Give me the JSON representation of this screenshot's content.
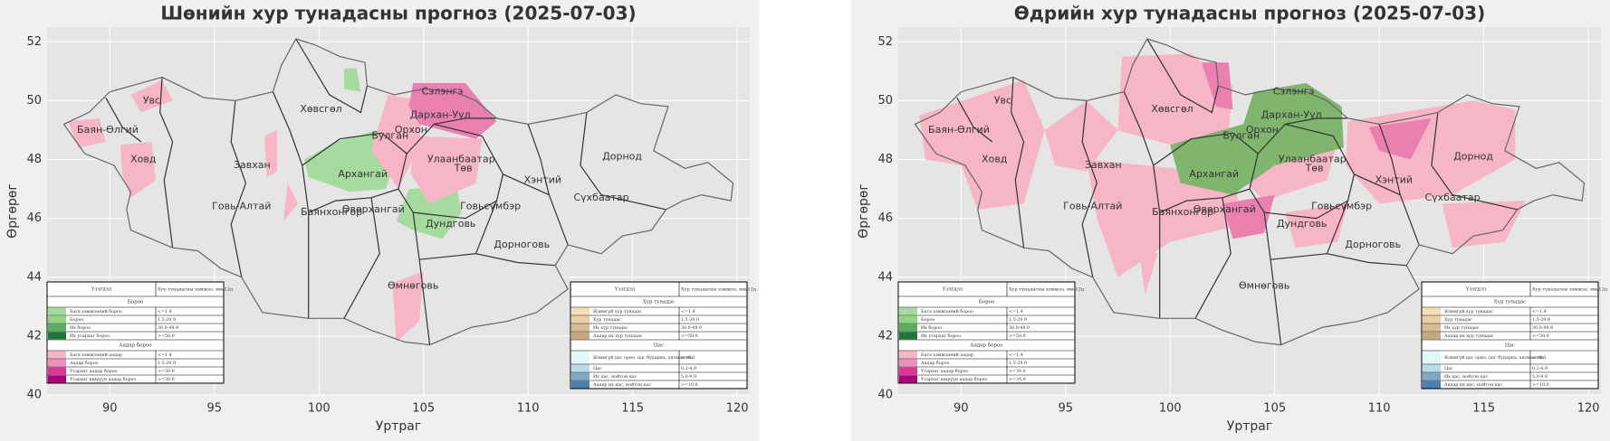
{
  "panels": [
    {
      "title": "Шөнийн хур тунадасны прогноз (2025-07-03)",
      "xlabel": "Уртраг",
      "ylabel": "Өргөрөг",
      "xlim": [
        87,
        120.6
      ],
      "ylim": [
        40,
        52.5
      ],
      "xticks": [
        90,
        95,
        100,
        105,
        110,
        115,
        120
      ],
      "yticks": [
        40,
        42,
        44,
        46,
        48,
        50,
        52
      ]
    },
    {
      "title": "Өдрийн хур тунадасны прогноз (2025-07-03)",
      "xlabel": "Уртраг",
      "ylabel": "Өргөрөг",
      "xlim": [
        87,
        120.6
      ],
      "ylim": [
        40,
        52.5
      ],
      "xticks": [
        90,
        95,
        100,
        105,
        110,
        115,
        120
      ],
      "yticks": [
        40,
        42,
        44,
        46,
        48,
        50,
        52
      ]
    }
  ],
  "places": [
    "Увс",
    "Баян-Өлгий",
    "Ховд",
    "Завхан",
    "Говь-Алтай",
    "Хөвсгөл",
    "Архангай",
    "Баянхонгор",
    "Өвөрхангай",
    "Булган",
    "Орхон",
    "Сэлэнгэ",
    "Дархан-Уул",
    "Улаанбаатар",
    "Төв",
    "Хэнтий",
    "Дорнод",
    "Сүхбаатар",
    "Говьсүмбэр",
    "Дундговь",
    "Дорноговь",
    "Өмнөговь"
  ],
  "legends": [
    {
      "header": [
        "Үзэгдэл",
        "Хур тунадасны хэмжээ, мм/12ц"
      ],
      "sections": [
        {
          "name": "Бороо",
          "items": [
            {
              "label": "Бага хэмжээний бороо",
              "range": "<=1.4",
              "color": "#a6dba0"
            },
            {
              "label": "Бороо",
              "range": "1.5-29.9",
              "color": "#8fd67f"
            },
            {
              "label": "Их бороо",
              "range": "30.0-49.9",
              "color": "#5aae61"
            },
            {
              "label": "Их усархаг бороо",
              "range": ">=50.0",
              "color": "#1b7837"
            }
          ]
        },
        {
          "name": "Аадар бороо",
          "items": [
            {
              "label": "Бага хэмжээний аадар",
              "range": "<=1.4",
              "color": "#f7b6c6"
            },
            {
              "label": "Аадар бороо",
              "range": "1.5-29.9",
              "color": "#ef8fba"
            },
            {
              "label": "Усархаг аадар бороо",
              "range": ">=30.0",
              "color": "#dd3497"
            },
            {
              "label": "Усархаг ширүүн аадар бороо",
              "range": ">=30.0",
              "color": "#ae017e"
            }
          ]
        }
      ]
    },
    {
      "header": [
        "Үзэгдэл",
        "Хур тунадасны хэмжээ, мм/12ц"
      ],
      "sections": [
        {
          "name": "Хур тунадас",
          "items": [
            {
              "label": "Ялимгүй хур тунадас",
              "range": "<=1.4",
              "color": "#f5dfb5"
            },
            {
              "label": "Хур тунадас",
              "range": "1.5-29.9",
              "color": "#e9cfa2"
            },
            {
              "label": "Их хур тунадас",
              "range": "30.0-49.9",
              "color": "#d8bb8e"
            },
            {
              "label": "Аадар их хур тунадас",
              "range": ">=50.0",
              "color": "#c9a77c"
            }
          ]
        },
        {
          "name": "Цас",
          "items": [
            {
              "label": "Ялимгүй цас орно, цас бударна, хялмаална",
              "range": "<=0.1",
              "color": "#e0f8f8"
            },
            {
              "label": "Цас",
              "range": "0.2-4.9",
              "color": "#b8dbe8"
            },
            {
              "label": "Их цас, нойтон цас",
              "range": "5.0-9.9",
              "color": "#7ea8c8"
            },
            {
              "label": "Аадар их цас, нойтон цас",
              "range": ">=10.0",
              "color": "#4a7fb0"
            }
          ]
        }
      ]
    }
  ]
}
